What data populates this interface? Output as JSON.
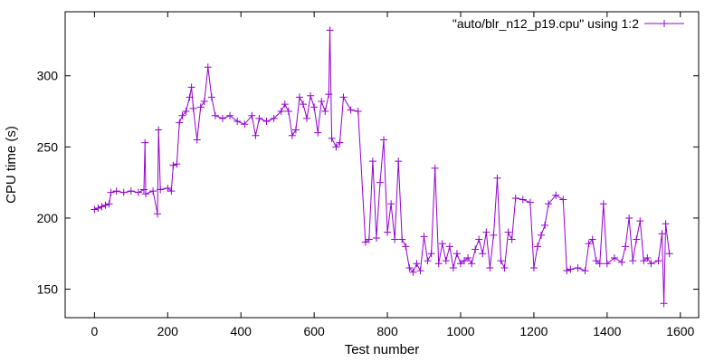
{
  "chart_data": {
    "type": "line",
    "xlabel": "Test number",
    "ylabel": "CPU time (s)",
    "xlim": [
      -80,
      1650
    ],
    "ylim": [
      130,
      345
    ],
    "xticks": [
      0,
      200,
      400,
      600,
      800,
      1000,
      1200,
      1400,
      1600
    ],
    "yticks": [
      150,
      200,
      250,
      300
    ],
    "xtick_labels": [
      "0",
      "200",
      "400",
      "600",
      "800",
      "1000",
      "1200",
      "1400",
      "1600"
    ],
    "ytick_labels": [
      "150",
      "200",
      "250",
      "300"
    ],
    "grid": false,
    "legend_position": "top-right",
    "series": [
      {
        "name": "\"auto/blr_n12_p19.cpu\" using 1:2",
        "color": "#9400d3",
        "marker": "plus",
        "points": [
          [
            0,
            206
          ],
          [
            10,
            207
          ],
          [
            20,
            208
          ],
          [
            30,
            209
          ],
          [
            40,
            210
          ],
          [
            45,
            218
          ],
          [
            60,
            219
          ],
          [
            80,
            218
          ],
          [
            100,
            219
          ],
          [
            120,
            218
          ],
          [
            135,
            220
          ],
          [
            138,
            253
          ],
          [
            140,
            217
          ],
          [
            160,
            219
          ],
          [
            172,
            203
          ],
          [
            175,
            262
          ],
          [
            180,
            220
          ],
          [
            200,
            221
          ],
          [
            210,
            219
          ],
          [
            215,
            237
          ],
          [
            225,
            238
          ],
          [
            232,
            267
          ],
          [
            240,
            272
          ],
          [
            250,
            275
          ],
          [
            260,
            285
          ],
          [
            265,
            292
          ],
          [
            270,
            277
          ],
          [
            280,
            255
          ],
          [
            290,
            278
          ],
          [
            300,
            282
          ],
          [
            310,
            306
          ],
          [
            320,
            285
          ],
          [
            330,
            272
          ],
          [
            350,
            270
          ],
          [
            370,
            272
          ],
          [
            390,
            268
          ],
          [
            410,
            266
          ],
          [
            430,
            272
          ],
          [
            440,
            258
          ],
          [
            450,
            270
          ],
          [
            470,
            268
          ],
          [
            490,
            270
          ],
          [
            510,
            275
          ],
          [
            520,
            280
          ],
          [
            530,
            275
          ],
          [
            540,
            258
          ],
          [
            550,
            262
          ],
          [
            560,
            285
          ],
          [
            570,
            280
          ],
          [
            580,
            270
          ],
          [
            590,
            286
          ],
          [
            600,
            278
          ],
          [
            610,
            260
          ],
          [
            620,
            282
          ],
          [
            630,
            275
          ],
          [
            640,
            287
          ],
          [
            643,
            332
          ],
          [
            648,
            256
          ],
          [
            660,
            250
          ],
          [
            670,
            253
          ],
          [
            680,
            285
          ],
          [
            700,
            276
          ],
          [
            720,
            275
          ],
          [
            740,
            183
          ],
          [
            750,
            185
          ],
          [
            760,
            240
          ],
          [
            770,
            186
          ],
          [
            780,
            225
          ],
          [
            790,
            255
          ],
          [
            800,
            190
          ],
          [
            810,
            210
          ],
          [
            820,
            185
          ],
          [
            830,
            240
          ],
          [
            840,
            185
          ],
          [
            850,
            180
          ],
          [
            860,
            165
          ],
          [
            870,
            162
          ],
          [
            880,
            168
          ],
          [
            890,
            163
          ],
          [
            900,
            187
          ],
          [
            910,
            170
          ],
          [
            920,
            175
          ],
          [
            930,
            235
          ],
          [
            940,
            168
          ],
          [
            950,
            182
          ],
          [
            960,
            170
          ],
          [
            970,
            180
          ],
          [
            980,
            165
          ],
          [
            990,
            175
          ],
          [
            1000,
            168
          ],
          [
            1010,
            170
          ],
          [
            1020,
            172
          ],
          [
            1030,
            168
          ],
          [
            1040,
            178
          ],
          [
            1050,
            185
          ],
          [
            1060,
            175
          ],
          [
            1070,
            190
          ],
          [
            1080,
            165
          ],
          [
            1090,
            188
          ],
          [
            1100,
            228
          ],
          [
            1110,
            170
          ],
          [
            1120,
            165
          ],
          [
            1130,
            190
          ],
          [
            1140,
            185
          ],
          [
            1150,
            214
          ],
          [
            1170,
            213
          ],
          [
            1190,
            211
          ],
          [
            1200,
            165
          ],
          [
            1210,
            180
          ],
          [
            1220,
            188
          ],
          [
            1230,
            195
          ],
          [
            1240,
            210
          ],
          [
            1260,
            216
          ],
          [
            1280,
            213
          ],
          [
            1290,
            163
          ],
          [
            1300,
            164
          ],
          [
            1320,
            165
          ],
          [
            1340,
            163
          ],
          [
            1350,
            182
          ],
          [
            1360,
            185
          ],
          [
            1370,
            170
          ],
          [
            1380,
            168
          ],
          [
            1390,
            210
          ],
          [
            1400,
            168
          ],
          [
            1420,
            172
          ],
          [
            1440,
            169
          ],
          [
            1450,
            180
          ],
          [
            1460,
            200
          ],
          [
            1470,
            170
          ],
          [
            1480,
            185
          ],
          [
            1490,
            198
          ],
          [
            1500,
            170
          ],
          [
            1510,
            172
          ],
          [
            1520,
            168
          ],
          [
            1540,
            170
          ],
          [
            1550,
            189
          ],
          [
            1555,
            140
          ],
          [
            1560,
            196
          ],
          [
            1570,
            175
          ]
        ]
      }
    ]
  }
}
